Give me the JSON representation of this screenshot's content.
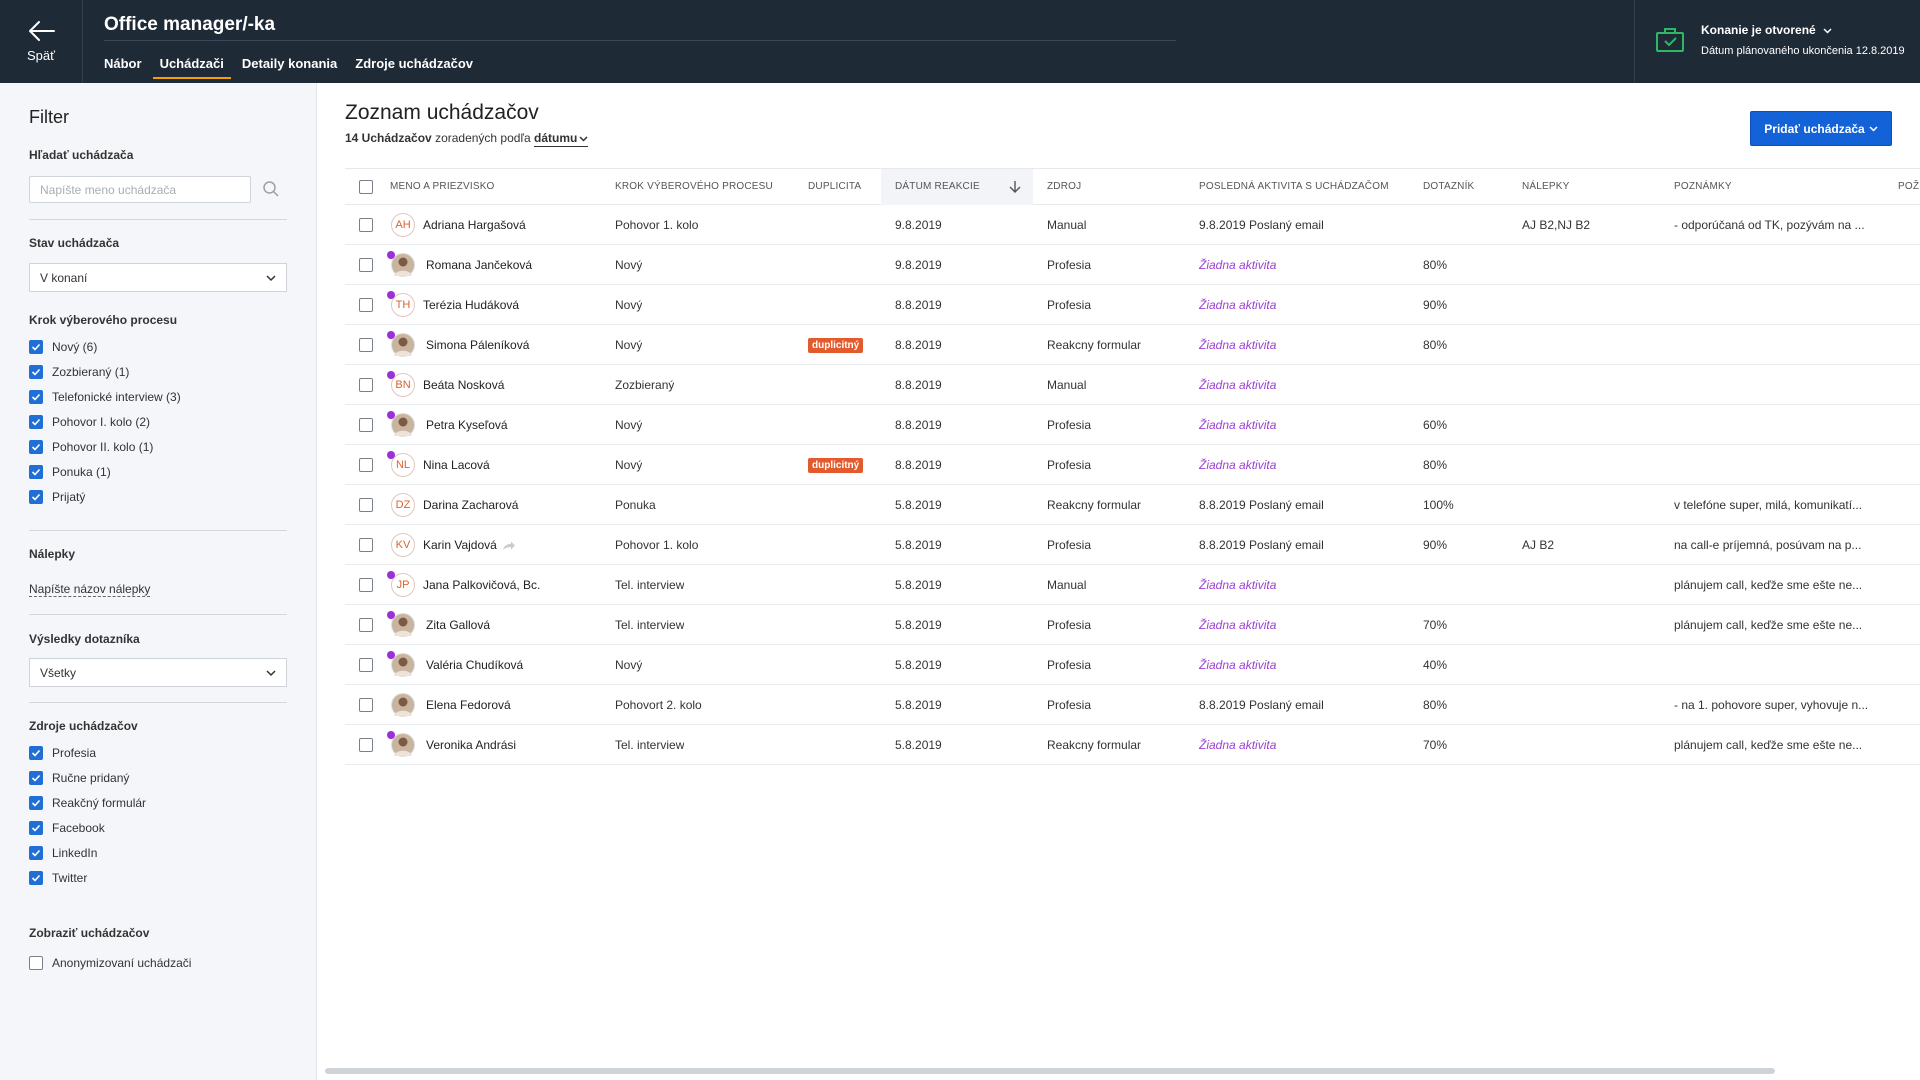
{
  "header": {
    "back_label": "Späť",
    "job_title": "Office manager/-ka",
    "tabs": [
      {
        "label": "Nábor",
        "active": false
      },
      {
        "label": "Uchádzači",
        "active": true
      },
      {
        "label": "Detaily konania",
        "active": false
      },
      {
        "label": "Zdroje uchádzačov",
        "active": false
      }
    ],
    "status_title": "Konanie je otvorené",
    "status_sub": "Dátum plánovaného ukončenia 12.8.2019",
    "accent_color": "#f4a100",
    "status_icon_color": "#2fb864"
  },
  "sidebar": {
    "title": "Filter",
    "search_label": "Hľadať uchádzača",
    "search_placeholder": "Napíšte meno uchádzača",
    "state_label": "Stav uchádzača",
    "state_value": "V konaní",
    "steps_label": "Krok výberového procesu",
    "steps": [
      {
        "label": "Nový (6)",
        "checked": true
      },
      {
        "label": "Zozbieraný (1)",
        "checked": true
      },
      {
        "label": "Telefonické interview (3)",
        "checked": true
      },
      {
        "label": "Pohovor I. kolo (2)",
        "checked": true
      },
      {
        "label": "Pohovor II. kolo (1)",
        "checked": true
      },
      {
        "label": "Ponuka (1)",
        "checked": true
      },
      {
        "label": "Prijatý",
        "checked": true
      }
    ],
    "tags_label": "Nálepky",
    "tags_link": "Napíšte názov nálepky",
    "quiz_label": "Výsledky dotazníka",
    "quiz_value": "Všetky",
    "sources_label": "Zdroje uchádzačov",
    "sources": [
      {
        "label": "Profesia",
        "checked": true
      },
      {
        "label": "Ručne pridaný",
        "checked": true
      },
      {
        "label": "Reakčný formulár",
        "checked": true
      },
      {
        "label": "Facebook",
        "checked": true
      },
      {
        "label": "LinkedIn",
        "checked": true
      },
      {
        "label": "Twitter",
        "checked": true
      }
    ],
    "show_label": "Zobraziť uchádzačov",
    "anon_label": "Anonymizovaní uchádzači",
    "checkbox_color": "#1f6fd6"
  },
  "main": {
    "title": "Zoznam uchádzačov",
    "count": "14 Uchádzačov",
    "sorted_text": "zoradených podľa",
    "sort_field": "dátumu",
    "add_button": "Pridať uchádzača",
    "add_button_color": "#1462d8"
  },
  "table": {
    "headers": {
      "name": "Meno a priezvisko",
      "step": "Krok výberového procesu",
      "dup": "Duplicita",
      "date": "Dátum reakcie",
      "source": "Zdroj",
      "activity": "Posledná aktivita s uchádzačom",
      "quiz": "Dotazník",
      "tags": "Nálepky",
      "notes": "Poznámky",
      "extra": "Pož"
    },
    "rows": [
      {
        "initials": "AH",
        "photo": false,
        "dot": false,
        "name": "Adriana Hargašová",
        "step": "Pohovor 1. kolo",
        "dup": "",
        "date": "9.8.2019",
        "source": "Manual",
        "activity": "9.8.2019 Poslaný email",
        "no_activity": false,
        "quiz": "",
        "tags": "AJ B2,NJ B2",
        "notes": "- odporúčaná od TK, pozývám na ...",
        "shared": false
      },
      {
        "initials": "",
        "photo": true,
        "dot": true,
        "name": "Romana Jančeková",
        "step": "Nový",
        "dup": "",
        "date": "9.8.2019",
        "source": "Profesia",
        "activity": "Žiadna aktivita",
        "no_activity": true,
        "quiz": "80%",
        "tags": "",
        "notes": "",
        "shared": false
      },
      {
        "initials": "TH",
        "photo": false,
        "dot": true,
        "name": "Terézia Hudáková",
        "step": "Nový",
        "dup": "",
        "date": "8.8.2019",
        "source": "Profesia",
        "activity": "Žiadna aktivita",
        "no_activity": true,
        "quiz": "90%",
        "tags": "",
        "notes": "",
        "shared": false
      },
      {
        "initials": "",
        "photo": true,
        "dot": true,
        "name": "Simona Páleníková",
        "step": "Nový",
        "dup": "duplicitný",
        "date": "8.8.2019",
        "source": "Reakcny formular",
        "activity": "Žiadna aktivita",
        "no_activity": true,
        "quiz": "80%",
        "tags": "",
        "notes": "",
        "shared": false
      },
      {
        "initials": "BN",
        "photo": false,
        "dot": true,
        "name": "Beáta Nosková",
        "step": "Zozbieraný",
        "dup": "",
        "date": "8.8.2019",
        "source": "Manual",
        "activity": "Žiadna aktivita",
        "no_activity": true,
        "quiz": "",
        "tags": "",
        "notes": "",
        "shared": false
      },
      {
        "initials": "",
        "photo": true,
        "dot": true,
        "name": "Petra Kyseľová",
        "step": "Nový",
        "dup": "",
        "date": "8.8.2019",
        "source": "Profesia",
        "activity": "Žiadna aktivita",
        "no_activity": true,
        "quiz": "60%",
        "tags": "",
        "notes": "",
        "shared": false
      },
      {
        "initials": "NL",
        "photo": false,
        "dot": true,
        "name": "Nina Lacová",
        "step": "Nový",
        "dup": "duplicitný",
        "date": "8.8.2019",
        "source": "Profesia",
        "activity": "Žiadna aktivita",
        "no_activity": true,
        "quiz": "80%",
        "tags": "",
        "notes": "",
        "shared": false
      },
      {
        "initials": "DZ",
        "photo": false,
        "dot": false,
        "name": "Darina Zacharová",
        "step": "Ponuka",
        "dup": "",
        "date": "5.8.2019",
        "source": "Reakcny formular",
        "activity": "8.8.2019 Poslaný email",
        "no_activity": false,
        "quiz": "100%",
        "tags": "",
        "notes": "v telefóne super, milá, komunikatí...",
        "shared": false
      },
      {
        "initials": "KV",
        "photo": false,
        "dot": false,
        "name": "Karin Vajdová",
        "step": "Pohovor 1. kolo",
        "dup": "",
        "date": "5.8.2019",
        "source": "Profesia",
        "activity": "8.8.2019 Poslaný email",
        "no_activity": false,
        "quiz": "90%",
        "tags": "AJ B2",
        "notes": "na call-e príjemná, posúvam na p...",
        "shared": true
      },
      {
        "initials": "JP",
        "photo": false,
        "dot": true,
        "name": "Jana Palkovičová, Bc.",
        "step": "Tel. interview",
        "dup": "",
        "date": "5.8.2019",
        "source": "Manual",
        "activity": "Žiadna aktivita",
        "no_activity": true,
        "quiz": "",
        "tags": "",
        "notes": "plánujem call, keďže sme ešte ne...",
        "shared": false
      },
      {
        "initials": "",
        "photo": true,
        "dot": true,
        "name": "Zita Gallová",
        "step": "Tel. interview",
        "dup": "",
        "date": "5.8.2019",
        "source": "Profesia",
        "activity": "Žiadna aktivita",
        "no_activity": true,
        "quiz": "70%",
        "tags": "",
        "notes": "plánujem call, keďže sme ešte ne...",
        "shared": false
      },
      {
        "initials": "",
        "photo": true,
        "dot": true,
        "name": "Valéria Chudíková",
        "step": "Nový",
        "dup": "",
        "date": "5.8.2019",
        "source": "Profesia",
        "activity": "Žiadna aktivita",
        "no_activity": true,
        "quiz": "40%",
        "tags": "",
        "notes": "",
        "shared": false
      },
      {
        "initials": "",
        "photo": true,
        "dot": false,
        "name": "Elena Fedorová",
        "step": "Pohovort 2. kolo",
        "dup": "",
        "date": "5.8.2019",
        "source": "Profesia",
        "activity": "8.8.2019 Poslaný email",
        "no_activity": false,
        "quiz": "80%",
        "tags": "",
        "notes": "- na 1. pohovore super, vyhovuje n...",
        "shared": false
      },
      {
        "initials": "",
        "photo": true,
        "dot": true,
        "name": "Veronika Andrási",
        "step": "Tel. interview",
        "dup": "",
        "date": "5.8.2019",
        "source": "Reakcny formular",
        "activity": "Žiadna aktivita",
        "no_activity": true,
        "quiz": "70%",
        "tags": "",
        "notes": "plánujem call, keďže sme ešte ne...",
        "shared": false
      }
    ],
    "no_activity_color": "#9b3fd4",
    "dup_badge_color": "#e35a2c",
    "new_dot_color": "#9b30d9"
  }
}
